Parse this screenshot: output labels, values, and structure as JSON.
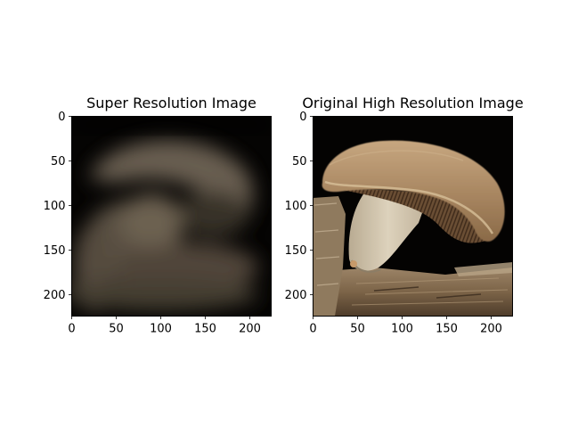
{
  "figure": {
    "background": "#ffffff"
  },
  "chart_data": [
    {
      "type": "image",
      "title": "Super Resolution Image",
      "content": "blurred brownish mushroom silhouette on black background",
      "image_extent": [
        0,
        224,
        224,
        0
      ],
      "xlim": [
        0,
        224
      ],
      "ylim": [
        224,
        0
      ],
      "xticks": [
        0,
        50,
        100,
        150,
        200
      ],
      "yticks": [
        0,
        50,
        100,
        150,
        200
      ],
      "xtick_labels": [
        "0",
        "50",
        "100",
        "150",
        "200"
      ],
      "ytick_labels": [
        "0",
        "50",
        "100",
        "150",
        "200"
      ],
      "xlabel": "",
      "ylabel": "",
      "grid": false,
      "colors": {
        "background": "#050403",
        "tone": "#7a6e5e"
      }
    },
    {
      "type": "image",
      "title": "Original High Resolution Image",
      "content": "photograph of a tan oyster-type mushroom with pale stem and visible gills growing from a weathered log, black background",
      "image_extent": [
        0,
        224,
        224,
        0
      ],
      "xlim": [
        0,
        224
      ],
      "ylim": [
        224,
        0
      ],
      "xticks": [
        0,
        50,
        100,
        150,
        200
      ],
      "yticks": [
        0,
        50,
        100,
        150,
        200
      ],
      "xtick_labels": [
        "0",
        "50",
        "100",
        "150",
        "200"
      ],
      "ytick_labels": [
        "0",
        "50",
        "100",
        "150",
        "200"
      ],
      "xlabel": "",
      "ylabel": "",
      "grid": false,
      "colors": {
        "background": "#040302",
        "cap": "#a98662",
        "stem": "#d2c6ae",
        "gills": "#5a402a",
        "log": "#8c7458"
      }
    }
  ]
}
